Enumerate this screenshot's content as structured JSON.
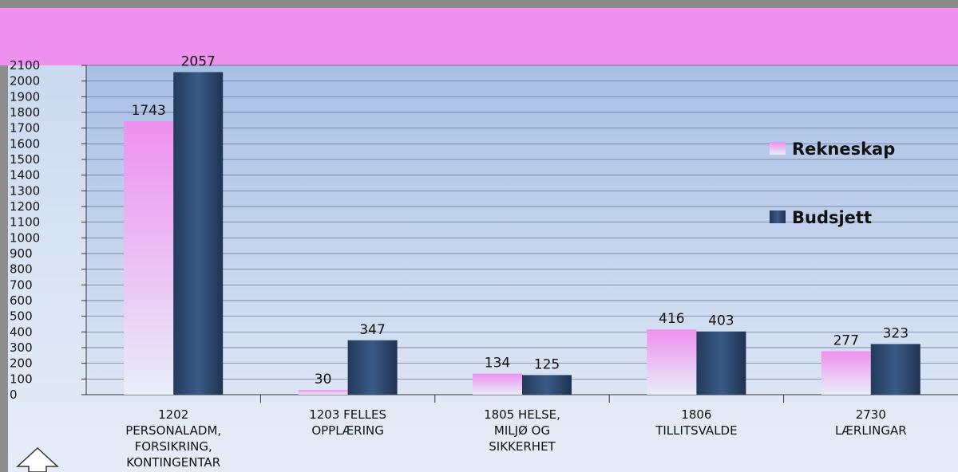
{
  "chart_data": {
    "type": "bar",
    "categories": [
      [
        "1202",
        "PERSONALADM,",
        "FORSIKRING,",
        "KONTINGENTAR"
      ],
      [
        "1203 FELLES",
        "OPPLÆRING"
      ],
      [
        "1805 HELSE,",
        "MILJØ OG",
        "SIKKERHET"
      ],
      [
        "1806",
        "TILLITSVALDE"
      ],
      [
        "2730",
        "LÆRLINGAR"
      ]
    ],
    "series": [
      {
        "name": "Rekneskap",
        "values": [
          1743,
          30,
          134,
          416,
          277
        ],
        "color": "#ee90ee"
      },
      {
        "name": "Budsjett",
        "values": [
          2057,
          347,
          125,
          403,
          323
        ],
        "color": "#2e4a70"
      }
    ],
    "ylim": [
      0,
      2100
    ],
    "ytick_step": 100,
    "grid": true,
    "legend_position": "right",
    "title": "",
    "xlabel": "",
    "ylabel": ""
  }
}
